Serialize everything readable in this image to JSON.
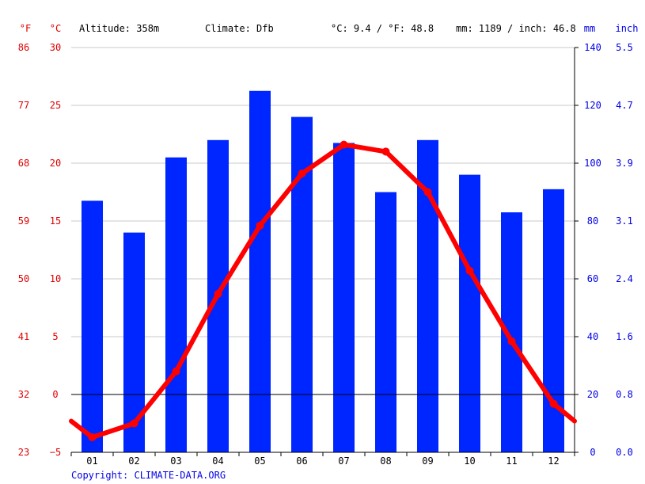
{
  "header": {
    "unit_f": "°F",
    "unit_c": "°C",
    "altitude": "Altitude: 358m",
    "climate": "Climate: Dfb",
    "temp_avg": "°C: 9.4 / °F: 48.8",
    "precip_total": "mm: 1189 / inch: 46.8",
    "unit_mm": "mm",
    "unit_inch": "inch"
  },
  "copyright": "Copyright: CLIMATE-DATA.ORG",
  "colors": {
    "bars": "#0026ff",
    "line": "#ff0000",
    "grid": "#c8c8c8",
    "axis_temp": "#e00000",
    "axis_precip": "#0000e6"
  },
  "chart_data": {
    "type": "bar",
    "categories": [
      "01",
      "02",
      "03",
      "04",
      "05",
      "06",
      "07",
      "08",
      "09",
      "10",
      "11",
      "12"
    ],
    "series": [
      {
        "type": "bar",
        "axis": "right",
        "unit": "mm",
        "values": [
          87,
          76,
          102,
          108,
          125,
          116,
          107,
          90,
          108,
          96,
          83,
          91
        ]
      },
      {
        "type": "line",
        "axis": "left",
        "unit": "°C",
        "values": [
          -3.7,
          -2.5,
          2.0,
          8.7,
          14.6,
          19.1,
          21.6,
          21.0,
          17.5,
          10.7,
          4.6,
          -0.8
        ],
        "edge_values": [
          -2.3,
          -2.3
        ]
      }
    ],
    "y_left": {
      "ylim": [
        -5,
        30
      ],
      "ticks": [
        "30",
        "25",
        "20",
        "15",
        "10",
        "5",
        "0",
        "−5"
      ]
    },
    "y_left_f": {
      "ticks": [
        "86",
        "77",
        "68",
        "59",
        "50",
        "41",
        "32",
        "23"
      ]
    },
    "y_right": {
      "ylim": [
        0,
        140
      ],
      "ticks": [
        "140",
        "120",
        "100",
        "80",
        "60",
        "40",
        "20",
        "0"
      ]
    },
    "y_right_inch": {
      "ticks": [
        "5.5",
        "4.7",
        "3.9",
        "3.1",
        "2.4",
        "1.6",
        "0.8",
        "0.0"
      ]
    },
    "grid": true
  }
}
